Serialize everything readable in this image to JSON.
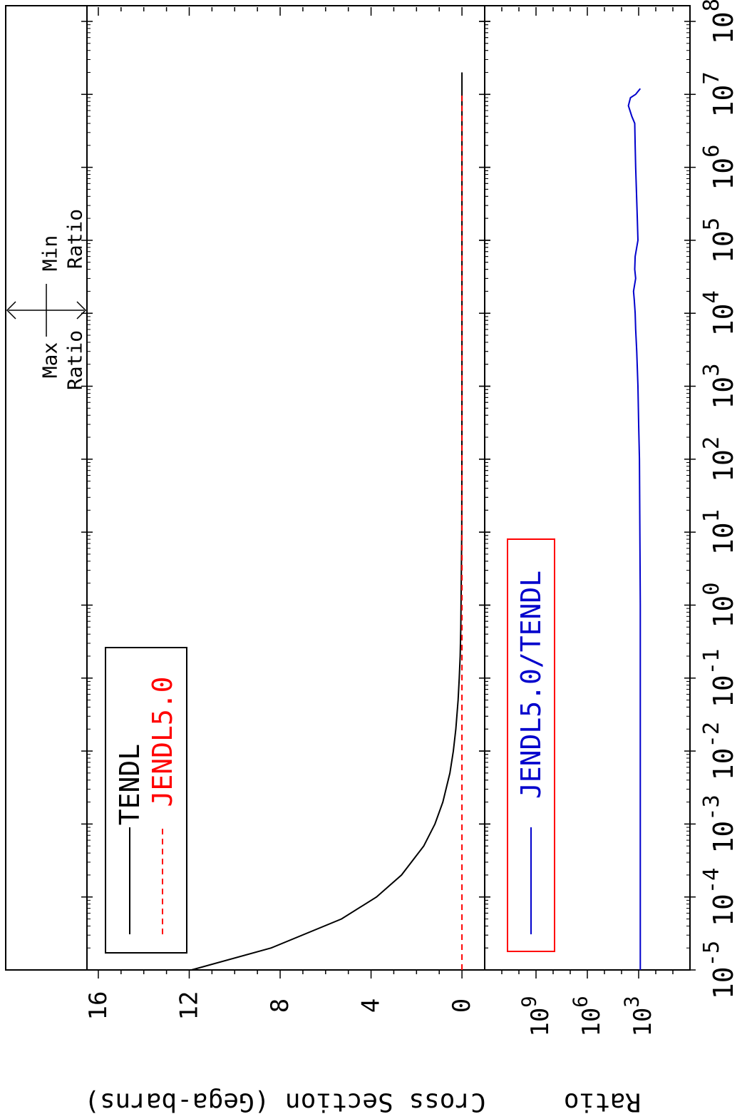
{
  "chart_data": [
    {
      "type": "line",
      "panel": "cross-section",
      "ylabel": "Cross Section (Gega-barns)",
      "x_scale": "log",
      "xlim": [
        1e-05,
        100000000
      ],
      "ylim": [
        -1,
        16.5
      ],
      "y_ticks": [
        0,
        4,
        8,
        12,
        16
      ],
      "y_tick_labels": [
        "0",
        "4",
        "8",
        "12",
        "16"
      ],
      "legend": {
        "placement": "top-left",
        "entries": [
          "TENDL",
          "JENDL5.0"
        ]
      },
      "series": [
        {
          "name": "TENDL",
          "color": "#000000",
          "style": "solid",
          "x": [
            1e-05,
            2e-05,
            5e-05,
            0.0001,
            0.0002,
            0.0005,
            0.001,
            0.002,
            0.005,
            0.01,
            0.02,
            0.05,
            0.1,
            0.2,
            0.5,
            1,
            10,
            100,
            1000,
            10000,
            100000,
            1000000,
            10000000,
            20000000
          ],
          "y": [
            11.9,
            8.4,
            5.3,
            3.76,
            2.66,
            1.68,
            1.19,
            0.84,
            0.53,
            0.38,
            0.27,
            0.17,
            0.12,
            0.08,
            0.05,
            0.04,
            0.01,
            0.004,
            0.0,
            0.0,
            0.0,
            0.0,
            0.0,
            0.0
          ]
        },
        {
          "name": "JENDL5.0",
          "color": "#ff0000",
          "style": "dashed",
          "x": [
            1e-05,
            1,
            100,
            1000,
            10000,
            100000,
            1000000,
            10000000
          ],
          "y": [
            0.0,
            0.0,
            0.0,
            0.0,
            0.0,
            0.0,
            0.0,
            0.0
          ]
        }
      ],
      "annotations": [
        "Max Ratio",
        "Min Ratio"
      ]
    },
    {
      "type": "line",
      "panel": "ratio",
      "ylabel": "Ratio",
      "y_scale": "log",
      "ylim": [
        1,
        1000000000000
      ],
      "y_ticks": [
        1000,
        1000000,
        1000000000
      ],
      "y_tick_labels": [
        [
          "10",
          "3"
        ],
        [
          "10",
          "6"
        ],
        [
          "10",
          "9"
        ]
      ],
      "x_scale": "log",
      "xlim": [
        1e-05,
        100000000
      ],
      "x_tick_values": [
        1e-05,
        0.0001,
        0.001,
        0.01,
        0.1,
        1,
        10,
        100,
        1000,
        10000,
        100000,
        1000000,
        10000000,
        100000000
      ],
      "x_tick_labels": [
        [
          "10",
          "-5"
        ],
        [
          "10",
          "-4"
        ],
        [
          "10",
          "-3"
        ],
        [
          "10",
          "-2"
        ],
        [
          "10",
          "-1"
        ],
        [
          "10",
          "0"
        ],
        [
          "10",
          "1"
        ],
        [
          "10",
          "2"
        ],
        [
          "10",
          "3"
        ],
        [
          "10",
          "4"
        ],
        [
          "10",
          "5"
        ],
        [
          "10",
          "6"
        ],
        [
          "10",
          "7"
        ],
        [
          "10",
          "8"
        ]
      ],
      "legend": {
        "placement": "top-left",
        "entries": [
          "JENDL5.0/TENDL"
        ]
      },
      "series": [
        {
          "name": "JENDL5.0/TENDL",
          "color": "#0000cc",
          "x": [
            1e-05,
            1,
            100,
            300,
            1000,
            3000,
            6000,
            10000,
            15000,
            20000,
            30000,
            40000,
            60000,
            100000,
            200000,
            1000000,
            2000000,
            4000000,
            5000000,
            7000000,
            9000000,
            10000000,
            12000000
          ],
          "y": [
            800,
            800,
            900,
            1000,
            1100,
            1300,
            1500,
            1600,
            1800,
            2000,
            1500,
            1700,
            1600,
            1100,
            1200,
            1500,
            1600,
            1700,
            2500,
            4000,
            3000,
            1500,
            800
          ]
        }
      ]
    }
  ]
}
